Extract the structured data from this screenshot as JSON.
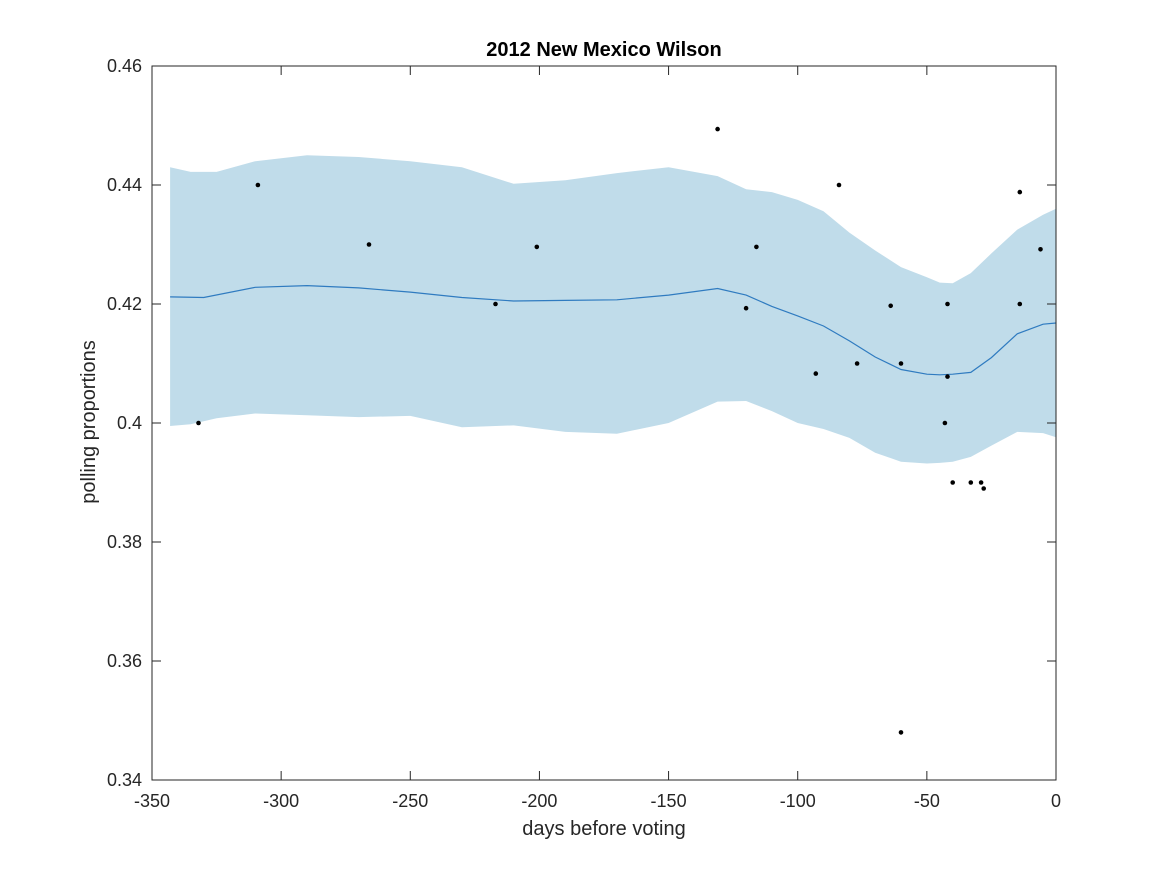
{
  "chart_data": {
    "type": "scatter",
    "title": "2012 New Mexico Wilson",
    "xlabel": "days before voting",
    "ylabel": "polling proportions",
    "xlim": [
      -350,
      0
    ],
    "ylim": [
      0.34,
      0.46
    ],
    "xticks": [
      -350,
      -300,
      -250,
      -200,
      -150,
      -100,
      -50,
      0
    ],
    "xtick_labels": [
      "-350",
      "-300",
      "-250",
      "-200",
      "-150",
      "-100",
      "-50",
      "0"
    ],
    "yticks": [
      0.34,
      0.36,
      0.38,
      0.4,
      0.42,
      0.44,
      0.46
    ],
    "ytick_labels": [
      "0.34",
      "0.36",
      "0.38",
      "0.4",
      "0.42",
      "0.44",
      "0.46"
    ],
    "grid": false,
    "colors": {
      "band": "#c0dcea",
      "trend_line": "#2f7bc0",
      "points": "#000000",
      "axes": "#262626"
    },
    "series": [
      {
        "type": "scatter",
        "points": [
          {
            "x": -332,
            "y": 0.4
          },
          {
            "x": -309,
            "y": 0.44
          },
          {
            "x": -266,
            "y": 0.43
          },
          {
            "x": -217,
            "y": 0.42
          },
          {
            "x": -201,
            "y": 0.4296
          },
          {
            "x": -131,
            "y": 0.4494
          },
          {
            "x": -120,
            "y": 0.4193
          },
          {
            "x": -116,
            "y": 0.4296
          },
          {
            "x": -93,
            "y": 0.4083
          },
          {
            "x": -84,
            "y": 0.44
          },
          {
            "x": -77,
            "y": 0.41
          },
          {
            "x": -64,
            "y": 0.4197
          },
          {
            "x": -60,
            "y": 0.41
          },
          {
            "x": -60,
            "y": 0.348
          },
          {
            "x": -43,
            "y": 0.4
          },
          {
            "x": -42,
            "y": 0.42
          },
          {
            "x": -42,
            "y": 0.4078
          },
          {
            "x": -40,
            "y": 0.39
          },
          {
            "x": -33,
            "y": 0.39
          },
          {
            "x": -29,
            "y": 0.39
          },
          {
            "x": -28,
            "y": 0.389
          },
          {
            "x": -14,
            "y": 0.4388
          },
          {
            "x": -14,
            "y": 0.42
          },
          {
            "x": -6,
            "y": 0.4292
          }
        ]
      },
      {
        "type": "line",
        "x": [
          -343,
          -330,
          -310,
          -290,
          -270,
          -250,
          -230,
          -210,
          -190,
          -170,
          -150,
          -131,
          -120,
          -110,
          -100,
          -90,
          -80,
          -70,
          -60,
          -50,
          -45,
          -40,
          -33,
          -25,
          -15,
          -5,
          0
        ],
        "y": [
          0.4212,
          0.4211,
          0.4228,
          0.4231,
          0.4227,
          0.422,
          0.4211,
          0.4205,
          0.4206,
          0.4207,
          0.4215,
          0.4226,
          0.4215,
          0.4196,
          0.418,
          0.4163,
          0.4138,
          0.4111,
          0.409,
          0.4082,
          0.4081,
          0.4082,
          0.4085,
          0.411,
          0.415,
          0.4166,
          0.4168
        ]
      },
      {
        "type": "area",
        "x": [
          -343,
          -335,
          -325,
          -310,
          -290,
          -270,
          -250,
          -230,
          -210,
          -190,
          -170,
          -150,
          -131,
          -120,
          -110,
          -100,
          -90,
          -80,
          -70,
          -60,
          -50,
          -45,
          -40,
          -33,
          -25,
          -15,
          -5,
          0
        ],
        "upper": [
          0.443,
          0.4422,
          0.4422,
          0.444,
          0.445,
          0.4447,
          0.444,
          0.443,
          0.4402,
          0.4408,
          0.442,
          0.443,
          0.4415,
          0.4393,
          0.4388,
          0.4375,
          0.4356,
          0.432,
          0.429,
          0.4262,
          0.4245,
          0.4236,
          0.4235,
          0.4252,
          0.4285,
          0.4325,
          0.435,
          0.436
        ],
        "lower": [
          0.3995,
          0.3998,
          0.4008,
          0.4016,
          0.4013,
          0.401,
          0.4012,
          0.3993,
          0.3996,
          0.3985,
          0.3982,
          0.4,
          0.4036,
          0.4037,
          0.402,
          0.4,
          0.399,
          0.3975,
          0.395,
          0.3935,
          0.3932,
          0.3933,
          0.3935,
          0.3943,
          0.3962,
          0.3985,
          0.3983,
          0.3976
        ]
      }
    ]
  }
}
